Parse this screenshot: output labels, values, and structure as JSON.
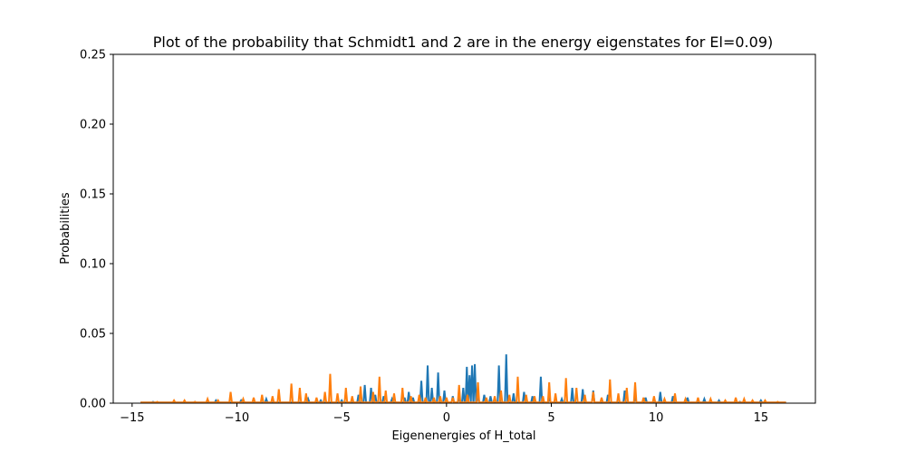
{
  "chart_data": {
    "type": "line",
    "title": "Plot of the probability that Schmidt1 and 2 are in the energy eigenstates for El=0.09)",
    "xlabel": "Eigenenergies of H_total",
    "ylabel": "Probabilities",
    "xlim": [
      -15.9,
      17.6
    ],
    "ylim": [
      0,
      0.25
    ],
    "xticks": [
      -15,
      -10,
      -5,
      0,
      5,
      10,
      15
    ],
    "xtick_labels": [
      "−15",
      "−10",
      "−5",
      "0",
      "5",
      "10",
      "15"
    ],
    "yticks": [
      0.0,
      0.05,
      0.1,
      0.15,
      0.2,
      0.25
    ],
    "ytick_labels": [
      "0.00",
      "0.05",
      "0.10",
      "0.15",
      "0.20",
      "0.25"
    ],
    "grid": false,
    "legend": "none",
    "x_range": [
      -14.6,
      16.2
    ],
    "series": [
      {
        "color": "#1f77b4",
        "peaks": [
          [
            -14.0,
            0.001
          ],
          [
            -12.0,
            0.001
          ],
          [
            -11.0,
            0.002
          ],
          [
            -9.8,
            0.002
          ],
          [
            -8.6,
            0.003
          ],
          [
            -6.6,
            0.003
          ],
          [
            -6.0,
            0.002
          ],
          [
            -5.0,
            0.002
          ],
          [
            -4.2,
            0.006
          ],
          [
            -3.9,
            0.013
          ],
          [
            -3.6,
            0.011
          ],
          [
            -3.4,
            0.006
          ],
          [
            -3.0,
            0.005
          ],
          [
            -2.6,
            0.003
          ],
          [
            -2.0,
            0.004
          ],
          [
            -1.8,
            0.008
          ],
          [
            -1.6,
            0.004
          ],
          [
            -1.2,
            0.016
          ],
          [
            -0.9,
            0.027
          ],
          [
            -0.7,
            0.011
          ],
          [
            -0.4,
            0.022
          ],
          [
            -0.1,
            0.009
          ],
          [
            0.3,
            0.005
          ],
          [
            0.6,
            0.004
          ],
          [
            0.8,
            0.011
          ],
          [
            0.97,
            0.026
          ],
          [
            1.1,
            0.02
          ],
          [
            1.22,
            0.027
          ],
          [
            1.35,
            0.028
          ],
          [
            1.5,
            0.007
          ],
          [
            1.8,
            0.006
          ],
          [
            2.1,
            0.005
          ],
          [
            2.5,
            0.027
          ],
          [
            2.85,
            0.035
          ],
          [
            3.2,
            0.007
          ],
          [
            3.7,
            0.008
          ],
          [
            4.1,
            0.005
          ],
          [
            4.5,
            0.019
          ],
          [
            4.9,
            0.004
          ],
          [
            5.5,
            0.003
          ],
          [
            6.0,
            0.011
          ],
          [
            6.5,
            0.01
          ],
          [
            7.0,
            0.009
          ],
          [
            7.7,
            0.006
          ],
          [
            8.5,
            0.009
          ],
          [
            9.0,
            0.005
          ],
          [
            9.5,
            0.004
          ],
          [
            10.2,
            0.008
          ],
          [
            10.8,
            0.005
          ],
          [
            11.5,
            0.004
          ],
          [
            12.3,
            0.003
          ],
          [
            13.0,
            0.002
          ],
          [
            14.0,
            0.001
          ],
          [
            15.0,
            0.002
          ]
        ]
      },
      {
        "color": "#ff7f0e",
        "peaks": [
          [
            -13.8,
            0.001
          ],
          [
            -13.0,
            0.002
          ],
          [
            -12.5,
            0.002
          ],
          [
            -12.0,
            0.001
          ],
          [
            -11.4,
            0.003
          ],
          [
            -10.9,
            0.002
          ],
          [
            -10.3,
            0.008
          ],
          [
            -9.7,
            0.003
          ],
          [
            -9.2,
            0.004
          ],
          [
            -8.8,
            0.006
          ],
          [
            -8.3,
            0.005
          ],
          [
            -8.0,
            0.01
          ],
          [
            -7.4,
            0.014
          ],
          [
            -7.0,
            0.011
          ],
          [
            -6.7,
            0.007
          ],
          [
            -6.2,
            0.004
          ],
          [
            -5.8,
            0.008
          ],
          [
            -5.55,
            0.021
          ],
          [
            -5.2,
            0.007
          ],
          [
            -4.8,
            0.011
          ],
          [
            -4.5,
            0.005
          ],
          [
            -4.1,
            0.012
          ],
          [
            -3.5,
            0.008
          ],
          [
            -3.2,
            0.019
          ],
          [
            -2.9,
            0.009
          ],
          [
            -2.5,
            0.007
          ],
          [
            -2.1,
            0.011
          ],
          [
            -1.7,
            0.005
          ],
          [
            -1.3,
            0.006
          ],
          [
            -1.0,
            0.004
          ],
          [
            -0.6,
            0.004
          ],
          [
            -0.3,
            0.005
          ],
          [
            0.0,
            0.004
          ],
          [
            0.3,
            0.004
          ],
          [
            0.6,
            0.013
          ],
          [
            1.0,
            0.006
          ],
          [
            1.5,
            0.015
          ],
          [
            1.9,
            0.004
          ],
          [
            2.3,
            0.005
          ],
          [
            2.6,
            0.009
          ],
          [
            3.0,
            0.006
          ],
          [
            3.4,
            0.019
          ],
          [
            3.8,
            0.006
          ],
          [
            4.2,
            0.005
          ],
          [
            4.6,
            0.005
          ],
          [
            4.9,
            0.015
          ],
          [
            5.2,
            0.007
          ],
          [
            5.7,
            0.018
          ],
          [
            6.2,
            0.011
          ],
          [
            6.6,
            0.006
          ],
          [
            7.0,
            0.008
          ],
          [
            7.4,
            0.004
          ],
          [
            7.8,
            0.017
          ],
          [
            8.2,
            0.007
          ],
          [
            8.6,
            0.011
          ],
          [
            9.0,
            0.015
          ],
          [
            9.4,
            0.004
          ],
          [
            9.9,
            0.005
          ],
          [
            10.4,
            0.003
          ],
          [
            10.9,
            0.007
          ],
          [
            11.4,
            0.003
          ],
          [
            12.0,
            0.004
          ],
          [
            12.6,
            0.003
          ],
          [
            13.3,
            0.002
          ],
          [
            13.8,
            0.004
          ],
          [
            14.2,
            0.003
          ],
          [
            14.6,
            0.002
          ],
          [
            15.2,
            0.002
          ],
          [
            15.8,
            0.001
          ]
        ]
      }
    ]
  }
}
